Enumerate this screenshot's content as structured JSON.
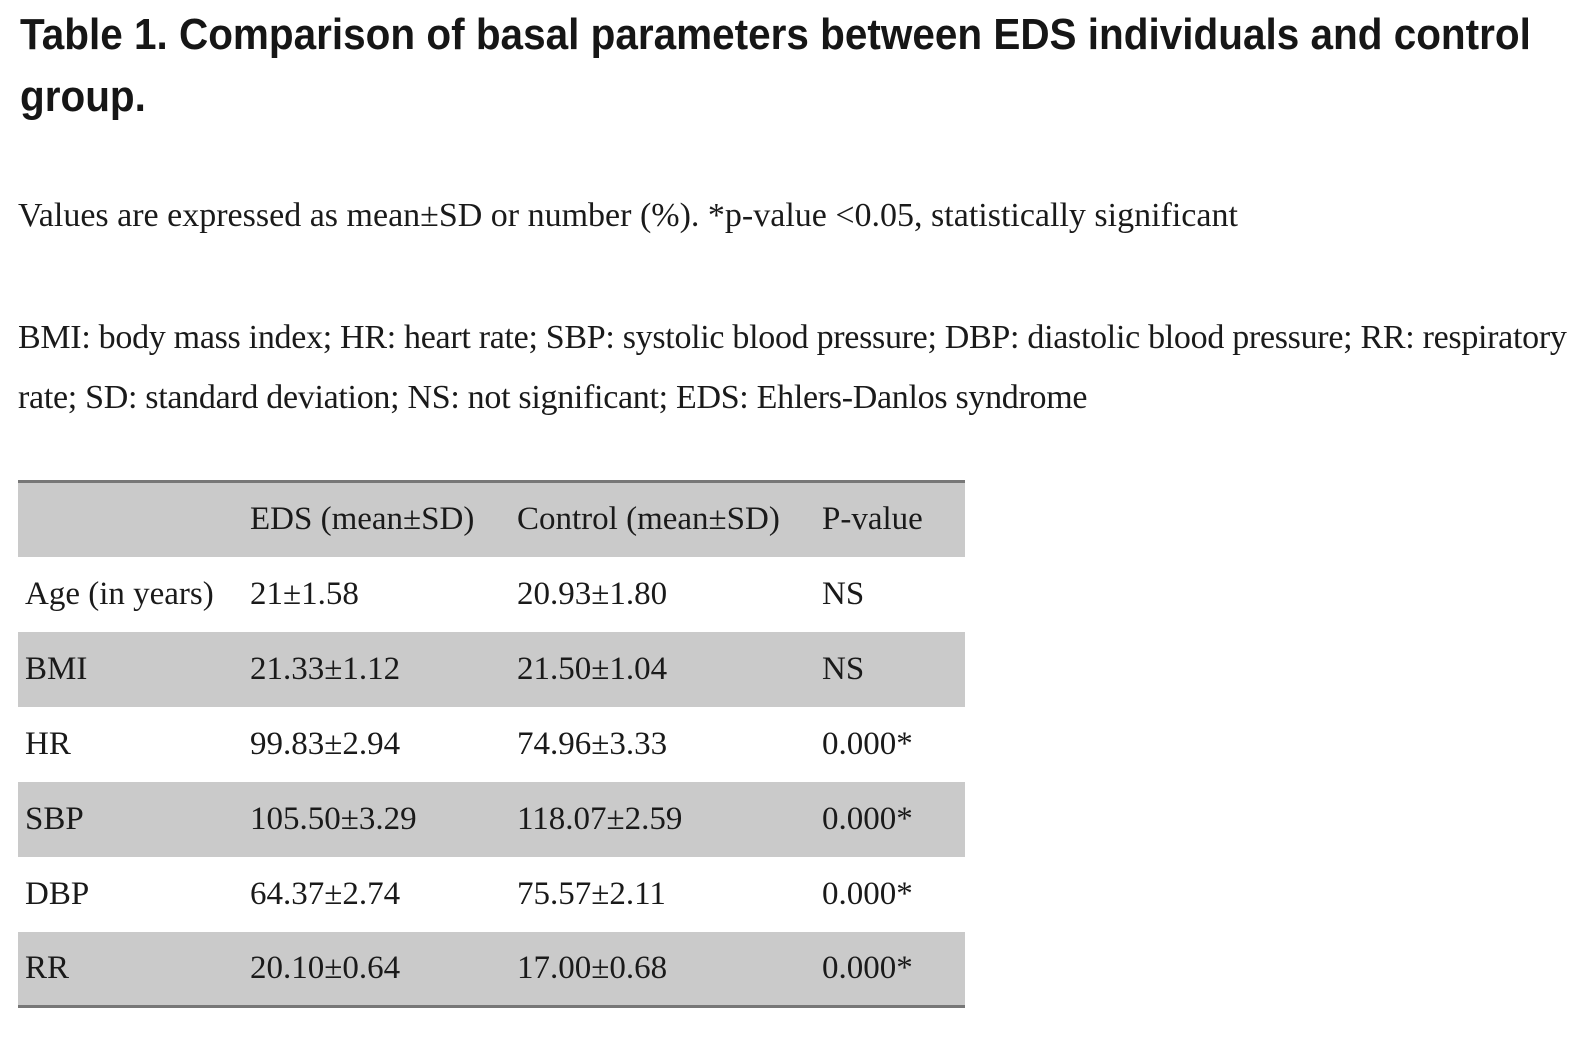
{
  "title": "Table 1. Comparison of basal parameters between EDS individuals and control group.",
  "notes": {
    "values_note": "Values are expressed as mean±SD or number (%). *p-value <0.05, statistically significant",
    "abbreviations": "BMI: body mass index; HR: heart rate; SBP: systolic blood pressure; DBP: diastolic blood pressure; RR: respiratory rate; SD: standard deviation; NS: not significant; EDS: Ehlers-Danlos syndrome"
  },
  "table": {
    "columns": [
      "",
      "EDS (mean±SD)",
      "Control (mean±SD)",
      "P-value"
    ],
    "rows": [
      {
        "label": "Age (in years)",
        "eds": "21±1.58",
        "control": "20.93±1.80",
        "p": "NS"
      },
      {
        "label": "BMI",
        "eds": "21.33±1.12",
        "control": "21.50±1.04",
        "p": "NS"
      },
      {
        "label": "HR",
        "eds": "99.83±2.94",
        "control": "74.96±3.33",
        "p": "0.000*"
      },
      {
        "label": "SBP",
        "eds": "105.50±3.29",
        "control": "118.07±2.59",
        "p": "0.000*"
      },
      {
        "label": "DBP",
        "eds": "64.37±2.74",
        "control": "75.57±2.11",
        "p": "0.000*"
      },
      {
        "label": "RR",
        "eds": "20.10±0.64",
        "control": "17.00±0.68",
        "p": "0.000*"
      }
    ]
  },
  "colors": {
    "stripe": "#cacaca",
    "table_border": "#777777",
    "text": "#1a1a1a"
  }
}
